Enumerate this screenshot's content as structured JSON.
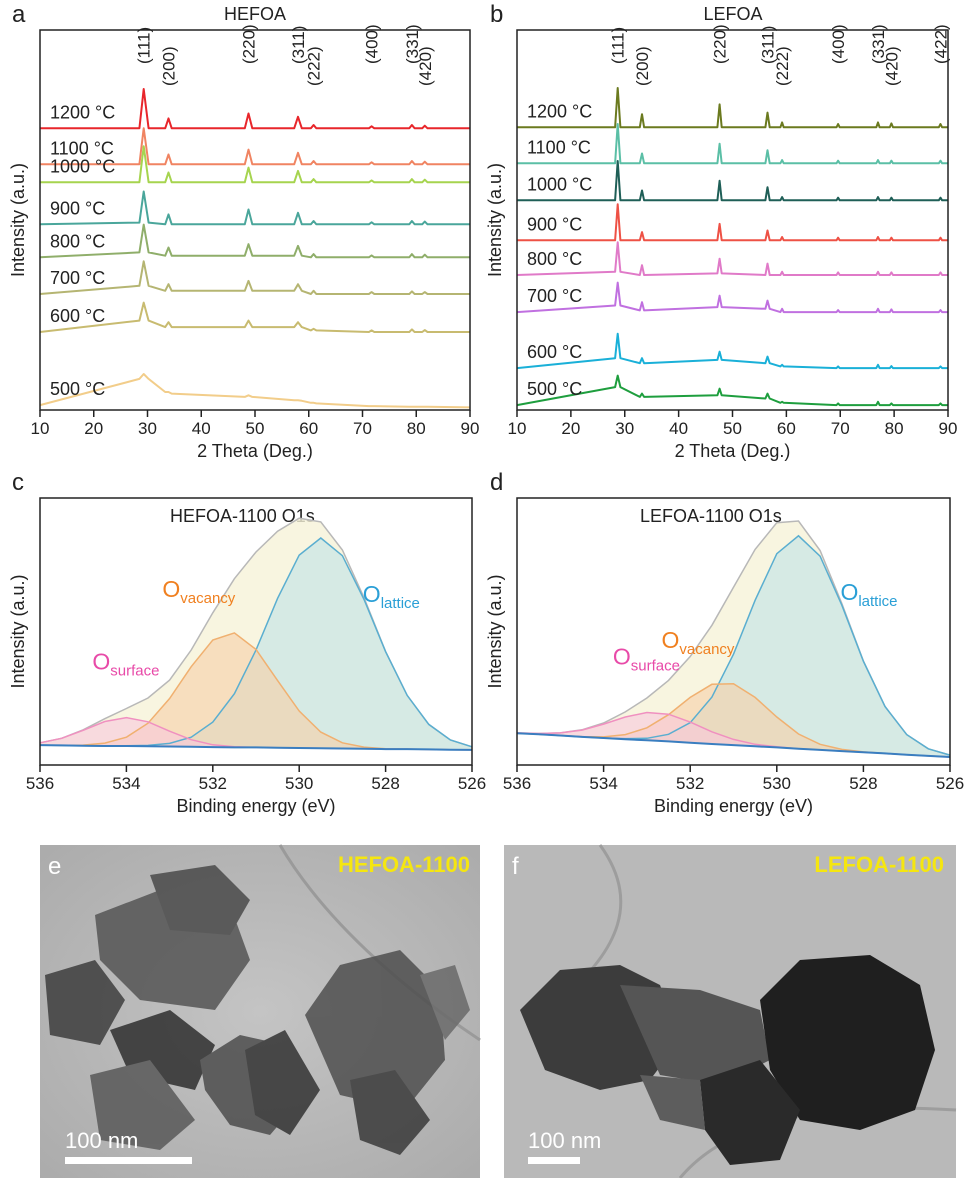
{
  "chart_data": [
    {
      "type": "line",
      "panel": "a",
      "title": "HEFOA",
      "xlabel": "2 Theta (Deg.)",
      "ylabel": "Intensity (a.u.)",
      "xlim": [
        10,
        90
      ],
      "xticks": [
        10,
        20,
        30,
        40,
        50,
        60,
        70,
        80,
        90
      ],
      "ylim": [
        0,
        116
      ],
      "x": [
        10,
        28.5,
        29.3,
        30.2,
        33.3,
        33.9,
        34.5,
        48.1,
        48.8,
        49.5,
        57.3,
        58,
        58.7,
        60.4,
        60.9,
        61.4,
        71.2,
        71.7,
        72.2,
        78.7,
        79.2,
        79.7,
        81.1,
        81.6,
        82.1,
        90
      ],
      "peak_labels": [
        {
          "label": "(111)",
          "x": 29.3
        },
        {
          "label": "(200)",
          "x": 33.9
        },
        {
          "label": "(220)",
          "x": 48.8
        },
        {
          "label": "(311)",
          "x": 58
        },
        {
          "label": "(222)",
          "x": 60.9
        },
        {
          "label": "(400)",
          "x": 71.7
        },
        {
          "label": "(331)",
          "x": 79.2
        },
        {
          "label": "(420)",
          "x": 81.6
        }
      ],
      "series": [
        {
          "name": "1200 °C",
          "color": "#e8262b",
          "values": [
            86,
            86,
            98,
            86,
            86,
            89,
            86,
            86,
            90.5,
            86,
            86,
            89.5,
            86,
            86,
            87,
            86,
            86,
            86.6,
            86,
            86,
            87,
            86,
            86,
            86.8,
            86,
            86
          ]
        },
        {
          "name": "1100 °C",
          "color": "#f08462",
          "values": [
            75,
            75,
            86,
            75,
            75,
            78,
            75,
            75,
            79.5,
            75,
            75,
            78.5,
            75,
            75,
            76,
            75,
            75,
            75.6,
            75,
            75,
            76,
            75,
            75,
            75.8,
            75,
            75
          ]
        },
        {
          "name": "1000 °C",
          "color": "#a6d44f",
          "values": [
            69.5,
            69.5,
            80.5,
            69.5,
            69.5,
            72.5,
            69.5,
            69.5,
            74,
            69.5,
            69.5,
            73,
            69.5,
            69.5,
            70.5,
            69.5,
            69.5,
            70.1,
            69.5,
            69.5,
            70.5,
            69.5,
            69.5,
            70.3,
            69.5,
            69.5
          ]
        },
        {
          "name": "900 °C",
          "color": "#4aa69b",
          "values": [
            56.7,
            57.2,
            66.7,
            57.2,
            56.7,
            59.7,
            56.7,
            56.7,
            61.2,
            56.7,
            56.7,
            60.2,
            56.7,
            56.7,
            57.7,
            56.7,
            56.7,
            57.3,
            56.7,
            56.7,
            57.7,
            56.7,
            56.7,
            57.5,
            56.7,
            56.7
          ]
        },
        {
          "name": "800 °C",
          "color": "#8fae6a",
          "values": [
            46.6,
            48.1,
            56.6,
            48.1,
            47.1,
            49.6,
            47.1,
            47.1,
            50.6,
            47.1,
            47.1,
            50.1,
            47.1,
            46.6,
            47.6,
            46.6,
            46.6,
            47.2,
            46.6,
            46.6,
            47.6,
            46.6,
            46.6,
            47.4,
            46.6,
            46.6
          ]
        },
        {
          "name": "700 °C",
          "color": "#b5b572",
          "values": [
            35.4,
            37.9,
            45.4,
            37.9,
            36.4,
            38.4,
            36.4,
            36.4,
            39.4,
            36.4,
            36.4,
            38.4,
            36.4,
            35.4,
            36.4,
            35.4,
            35.4,
            36,
            35.4,
            35.4,
            36.2,
            35.4,
            35.4,
            36,
            35.4,
            35.4
          ]
        },
        {
          "name": "600 °C",
          "color": "#c8bb70",
          "values": [
            23.8,
            27.3,
            32.8,
            27.3,
            25.3,
            26.8,
            25.3,
            25.3,
            27.3,
            25.3,
            25.3,
            26.8,
            25.3,
            24.3,
            24.8,
            24.3,
            23.8,
            24.3,
            23.8,
            23.8,
            24.6,
            23.8,
            23.8,
            24.4,
            23.8,
            23.8
          ]
        },
        {
          "name": "500 °C",
          "color": "#f2cd8a",
          "values": [
            1.5,
            9.5,
            11,
            9.5,
            5.5,
            5.5,
            5,
            4,
            4.5,
            4,
            3,
            3,
            2.8,
            2.2,
            2.2,
            2,
            1.2,
            1.2,
            1.2,
            1,
            1,
            1,
            1,
            1,
            1,
            0.8
          ]
        }
      ]
    },
    {
      "type": "line",
      "panel": "b",
      "title": "LEFOA",
      "xlabel": "2 Theta (Deg.)",
      "ylabel": "Intensity (a.u.)",
      "xlim": [
        10,
        90
      ],
      "xticks": [
        10,
        20,
        30,
        40,
        50,
        60,
        70,
        80,
        90
      ],
      "ylim": [
        0,
        116
      ],
      "x": [
        10,
        28.2,
        28.7,
        29.2,
        32.8,
        33.2,
        33.6,
        47.2,
        47.6,
        48.0,
        56.1,
        56.5,
        56.9,
        58.9,
        59.2,
        59.5,
        69.3,
        69.6,
        69.9,
        76.7,
        77.0,
        77.3,
        79.2,
        79.5,
        79.8,
        88.3,
        88.6,
        88.9,
        90
      ],
      "peak_labels": [
        {
          "label": "(111)",
          "x": 28.7
        },
        {
          "label": "(200)",
          "x": 33.2
        },
        {
          "label": "(220)",
          "x": 47.6
        },
        {
          "label": "(311)",
          "x": 56.5
        },
        {
          "label": "(222)",
          "x": 59.2
        },
        {
          "label": "(400)",
          "x": 69.6
        },
        {
          "label": "(331)",
          "x": 77.0
        },
        {
          "label": "(420)",
          "x": 79.5
        },
        {
          "label": "(422)",
          "x": 88.6
        }
      ],
      "series": [
        {
          "name": "1200 °C",
          "color": "#6b7a1f",
          "values": [
            86.3,
            86.3,
            98.3,
            86.3,
            86.3,
            90.3,
            86.3,
            86.3,
            93.3,
            86.3,
            86.3,
            90.8,
            86.3,
            86.3,
            87.8,
            86.3,
            86.3,
            87.3,
            86.3,
            86.3,
            87.8,
            86.3,
            86.3,
            87.5,
            86.3,
            86.3,
            87.3,
            86.3,
            86.3
          ]
        },
        {
          "name": "1100 °C",
          "color": "#5bbfa6",
          "values": [
            75.3,
            75.3,
            87.3,
            75.3,
            75.3,
            78.3,
            75.3,
            75.3,
            81.3,
            75.3,
            75.3,
            79.3,
            75.3,
            75.3,
            76.3,
            75.3,
            75.3,
            76.1,
            75.3,
            75.3,
            76.3,
            75.3,
            75.3,
            76.1,
            75.3,
            75.3,
            76.1,
            75.3,
            75.3
          ]
        },
        {
          "name": "1000 °C",
          "color": "#1f5f57",
          "values": [
            64,
            64,
            76,
            64,
            64,
            67,
            64,
            64,
            70,
            64,
            64,
            68,
            64,
            64,
            65,
            64,
            64,
            64.8,
            64,
            64,
            65,
            64,
            64,
            64.8,
            64,
            64,
            64.8,
            64,
            64
          ]
        },
        {
          "name": "900 °C",
          "color": "#ee5145",
          "values": [
            51.8,
            51.8,
            62.8,
            51.8,
            51.8,
            54.3,
            51.8,
            51.8,
            56.8,
            51.8,
            51.8,
            54.8,
            51.8,
            51.8,
            52.8,
            51.8,
            51.8,
            52.6,
            51.8,
            51.8,
            52.8,
            51.8,
            51.8,
            52.6,
            51.8,
            51.8,
            52.6,
            51.8,
            51.8
          ]
        },
        {
          "name": "800 °C",
          "color": "#e07ac8",
          "values": [
            41.2,
            42.2,
            51.2,
            42.2,
            41.2,
            44.2,
            41.2,
            41.7,
            46.2,
            41.7,
            41.2,
            44.7,
            41.2,
            41.2,
            42.2,
            41.2,
            41.2,
            42.0,
            41.2,
            41.2,
            42.2,
            41.2,
            41.2,
            42.0,
            41.2,
            41.2,
            42.0,
            41.2,
            41.2
          ]
        },
        {
          "name": "700 °C",
          "color": "#c070e0",
          "values": [
            29.9,
            31.9,
            38.9,
            31.9,
            30.4,
            32.9,
            30.4,
            31.4,
            34.9,
            31.4,
            30.9,
            33.4,
            30.9,
            29.9,
            30.9,
            29.9,
            29.9,
            30.5,
            29.9,
            29.9,
            30.9,
            29.9,
            29.9,
            30.7,
            29.9,
            29.9,
            30.5,
            29.9,
            29.9
          ]
        },
        {
          "name": "600 °C",
          "color": "#1ab0d8",
          "values": [
            12.8,
            15.8,
            23.3,
            15.8,
            14.3,
            15.8,
            14.3,
            15.3,
            17.8,
            15.3,
            14.3,
            16.3,
            14.3,
            13.3,
            13.8,
            13.3,
            12.8,
            13.3,
            12.8,
            12.8,
            13.8,
            12.8,
            12.8,
            13.4,
            12.8,
            12.8,
            13.3,
            12.8,
            12.8
          ]
        },
        {
          "name": "500 °C",
          "color": "#1e9e3e",
          "values": [
            1.5,
            7,
            10.5,
            7,
            4,
            5,
            4,
            4.5,
            6.5,
            4.5,
            3.5,
            5,
            3.5,
            2.2,
            2.5,
            2.2,
            1.5,
            2,
            1.5,
            1.5,
            2.5,
            1.5,
            1.5,
            2,
            1.5,
            1.5,
            2,
            1.5,
            1.5
          ]
        }
      ]
    },
    {
      "type": "area",
      "panel": "c",
      "title": "HEFOA-1100 O1s",
      "xlabel": "Binding energy (eV)",
      "ylabel": "Intensity (a.u.)",
      "xlim": [
        536,
        526
      ],
      "xticks": [
        536,
        534,
        532,
        530,
        528,
        526
      ],
      "ylim": [
        0,
        94
      ],
      "x": [
        536,
        535.5,
        535,
        534.5,
        534,
        533.5,
        533,
        532.5,
        532,
        531.5,
        531,
        530.5,
        530,
        529.5,
        529,
        528.5,
        528,
        527.5,
        527,
        526.5,
        526
      ],
      "series": [
        {
          "color": "#b8b8b8",
          "fill": "#f6f2d8",
          "values": [
            7.8,
            9.4,
            12.4,
            16.3,
            19.9,
            23.6,
            29.9,
            40.5,
            53.6,
            65.6,
            75.0,
            82.3,
            86.9,
            85.6,
            75.7,
            58.9,
            40.0,
            24.5,
            14.3,
            8.8,
            6.4
          ]
        },
        {
          "name": "O",
          "sub": "lattice",
          "color": "#5aaed0",
          "fill": "#bfe3e6",
          "label_color": "#2a9fd6",
          "values": [
            7.0,
            6.9,
            6.8,
            6.7,
            6.8,
            6.9,
            7.6,
            9.8,
            15.1,
            25.1,
            40.5,
            58.7,
            73.9,
            79.9,
            73.7,
            58.3,
            39.9,
            24.5,
            14.3,
            8.8,
            6.4
          ]
        },
        {
          "name": "O",
          "sub": "vacancy",
          "color": "#f0b070",
          "fill": "#f7cfa6",
          "label_color": "#f08020",
          "values": [
            7.0,
            6.9,
            7.0,
            7.7,
            9.8,
            14.7,
            23.4,
            34.6,
            44.0,
            46.5,
            40.7,
            29.7,
            19.0,
            11.6,
            7.8,
            6.3,
            5.7,
            5.6,
            5.5,
            5.4,
            5.3
          ]
        },
        {
          "name": "O",
          "sub": "surface",
          "color": "#f090c0",
          "fill": "#f8c8dc",
          "label_color": "#e84aa8",
          "values": [
            7.8,
            9.4,
            12.2,
            15.3,
            16.7,
            15.2,
            11.9,
            8.9,
            7.1,
            6.4,
            6.2,
            6.1,
            6.0,
            5.9,
            5.8,
            5.7,
            5.6,
            5.6,
            5.5,
            5.4,
            5.3
          ]
        },
        {
          "color": "#3a7ec0",
          "values": [
            7.0,
            6.9,
            6.8,
            6.7,
            6.7,
            6.6,
            6.5,
            6.4,
            6.3,
            6.2,
            6.2,
            6.1,
            6.0,
            5.9,
            5.8,
            5.7,
            5.6,
            5.6,
            5.5,
            5.4,
            5.3
          ]
        }
      ]
    },
    {
      "type": "area",
      "panel": "d",
      "title": "LEFOA-1100 O1s",
      "xlabel": "Binding energy (eV)",
      "ylabel": "Intensity (a.u.)",
      "xlim": [
        536,
        526
      ],
      "xticks": [
        536,
        534,
        532,
        530,
        528,
        526
      ],
      "ylim": [
        0,
        94
      ],
      "x": [
        536,
        535.5,
        535,
        534.5,
        534,
        533.5,
        533,
        532.5,
        532,
        531.5,
        531,
        530.5,
        530,
        529.5,
        529,
        528.5,
        528,
        527.5,
        527,
        526.5,
        526
      ],
      "series": [
        {
          "color": "#b8b8b8",
          "fill": "#f6f2d8",
          "values": [
            11.3,
            11.1,
            11.3,
            12.4,
            14.8,
            18.7,
            23.6,
            29.8,
            38.2,
            49.2,
            62.6,
            75.9,
            85.3,
            85.9,
            75.5,
            56.9,
            36.6,
            20.6,
            10.7,
            5.7,
            3.5
          ]
        },
        {
          "name": "O",
          "sub": "lattice",
          "color": "#5aaed0",
          "fill": "#bfe3e6",
          "label_color": "#2a9fd6",
          "values": [
            11.2,
            10.8,
            10.4,
            9.9,
            9.5,
            9.3,
            9.4,
            10.8,
            14.9,
            23.9,
            39.0,
            58.0,
            74.4,
            80.7,
            73.5,
            56.3,
            36.5,
            20.6,
            10.7,
            5.7,
            3.5
          ]
        },
        {
          "name": "O",
          "sub": "vacancy",
          "color": "#f0b070",
          "fill": "#f7cfa6",
          "label_color": "#f08020",
          "values": [
            11.2,
            10.8,
            10.4,
            10.0,
            9.9,
            10.7,
            13.1,
            17.7,
            23.8,
            28.4,
            28.6,
            23.8,
            16.9,
            10.9,
            7.3,
            5.5,
            4.6,
            4.1,
            3.6,
            3.2,
            2.8
          ]
        },
        {
          "name": "O",
          "sub": "surface",
          "color": "#f090c0",
          "fill": "#f8c8dc",
          "label_color": "#e84aa8",
          "values": [
            11.3,
            11.1,
            11.3,
            12.3,
            14.4,
            16.9,
            18.5,
            17.9,
            15.1,
            11.7,
            9.0,
            7.3,
            6.4,
            5.7,
            5.3,
            4.9,
            4.5,
            4.1,
            3.6,
            3.2,
            2.8
          ]
        },
        {
          "color": "#3a7ec0",
          "values": [
            11.2,
            10.8,
            10.4,
            9.9,
            9.5,
            9.1,
            8.7,
            8.3,
            7.8,
            7.4,
            7.0,
            6.6,
            6.2,
            5.7,
            5.3,
            4.9,
            4.5,
            4.1,
            3.6,
            3.2,
            2.8
          ]
        }
      ]
    }
  ],
  "images": [
    {
      "panel": "e",
      "caption": "HEFOA-1100",
      "scale_bar": "100 nm"
    },
    {
      "panel": "f",
      "caption": "LEFOA-1100",
      "scale_bar": "100 nm"
    }
  ]
}
